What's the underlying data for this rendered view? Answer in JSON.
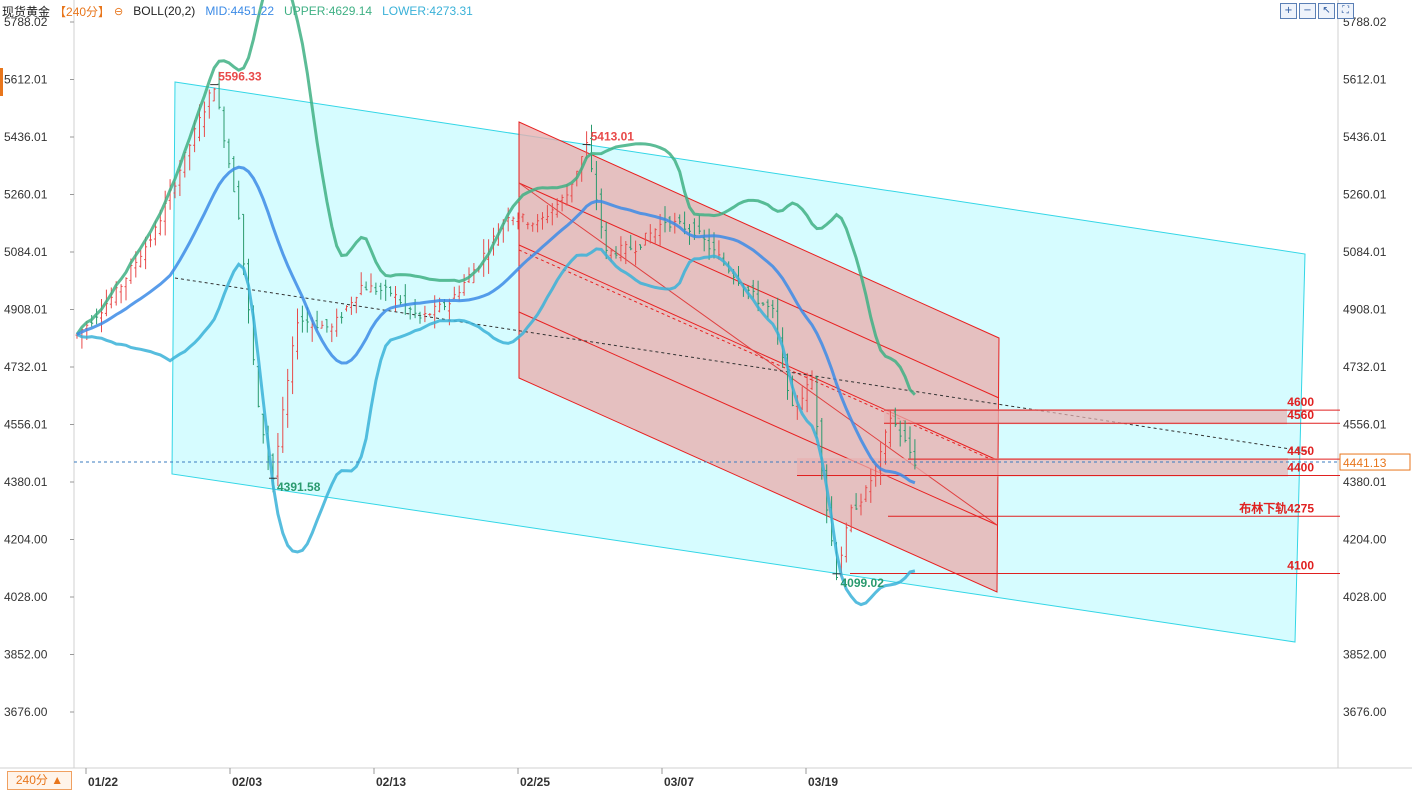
{
  "header": {
    "symbol": "现货黄金",
    "period": "【240分】",
    "indicator_name": "BOLL(20,2)",
    "mid_text": "MID:4451.22",
    "upper_text": "UPPER:4629.14",
    "lower_text": "LOWER:4273.31",
    "gear_icon": "⊖"
  },
  "toolbar": {
    "buttons": [
      "zoom-in-icon",
      "zoom-out-icon",
      "arrow-icon",
      "fullscreen-icon"
    ]
  },
  "footer": {
    "period_button": "240分 ▲"
  },
  "chart_data": {
    "type": "candlestick",
    "title": "现货黄金【240分】",
    "ylim": [
      3588,
      5876
    ],
    "yticks": [
      5788.02,
      5612.01,
      5436.01,
      5260.01,
      5084.01,
      4908.01,
      4732.01,
      4556.01,
      4380.01,
      4204.0,
      4028.0,
      3852.0,
      3676.0
    ],
    "xtick_labels": [
      "01/22",
      "02/03",
      "02/13",
      "02/25",
      "03/07",
      "03/19"
    ],
    "current_price": "4441.13",
    "price_anchors": [
      {
        "bar": 0,
        "price": 4830
      },
      {
        "bar": 8,
        "price": 4960
      },
      {
        "bar": 16,
        "price": 5150
      },
      {
        "bar": 24,
        "price": 5450
      },
      {
        "bar": 28,
        "price": 5596.33
      },
      {
        "bar": 33,
        "price": 5200
      },
      {
        "bar": 37,
        "price": 4600
      },
      {
        "bar": 40,
        "price": 4391.58
      },
      {
        "bar": 45,
        "price": 4880
      },
      {
        "bar": 52,
        "price": 4850
      },
      {
        "bar": 58,
        "price": 4980
      },
      {
        "bar": 64,
        "price": 4960
      },
      {
        "bar": 70,
        "price": 4880
      },
      {
        "bar": 76,
        "price": 4930
      },
      {
        "bar": 82,
        "price": 5050
      },
      {
        "bar": 88,
        "price": 5200
      },
      {
        "bar": 94,
        "price": 5170
      },
      {
        "bar": 100,
        "price": 5260
      },
      {
        "bar": 104,
        "price": 5413.01
      },
      {
        "bar": 108,
        "price": 5080
      },
      {
        "bar": 114,
        "price": 5100
      },
      {
        "bar": 120,
        "price": 5180
      },
      {
        "bar": 126,
        "price": 5150
      },
      {
        "bar": 132,
        "price": 5050
      },
      {
        "bar": 138,
        "price": 4950
      },
      {
        "bar": 142,
        "price": 4900
      },
      {
        "bar": 146,
        "price": 4600
      },
      {
        "bar": 150,
        "price": 4690
      },
      {
        "bar": 153,
        "price": 4300
      },
      {
        "bar": 155,
        "price": 4099.02
      },
      {
        "bar": 158,
        "price": 4290
      },
      {
        "bar": 161,
        "price": 4350
      },
      {
        "bar": 164,
        "price": 4460
      },
      {
        "bar": 166,
        "price": 4580
      },
      {
        "bar": 169,
        "price": 4500
      },
      {
        "bar": 171,
        "price": 4441.13
      }
    ],
    "annotations": {
      "high_labels": [
        {
          "text": "5596.33",
          "bar": 28,
          "price": 5596.33
        },
        {
          "text": "5413.01",
          "bar": 104,
          "price": 5413.01
        }
      ],
      "low_labels": [
        {
          "text": "4391.58",
          "bar": 40,
          "price": 4391.58
        },
        {
          "text": "4099.02",
          "bar": 155,
          "price": 4099.02
        }
      ],
      "levels": [
        {
          "text": "4600",
          "price": 4600
        },
        {
          "text": "4560",
          "price": 4560
        },
        {
          "text": "4450",
          "price": 4450
        },
        {
          "text": "4400",
          "price": 4400
        },
        {
          "text": "布林下轨4275",
          "price": 4275
        },
        {
          "text": "4100",
          "price": 4100
        }
      ]
    },
    "colors": {
      "up": "#e84a4a",
      "down": "#2a9a6e",
      "mid": "#3c8be6",
      "upper": "#3fb084",
      "lower": "#3ab1d8",
      "channel_fill": "#c8fbff",
      "channel_line": "#33d6e6",
      "red_channel_fill": "#e8b0b0",
      "red_line": "#e82020",
      "level_line": "#e02020",
      "current_price": "#e8761c"
    }
  }
}
